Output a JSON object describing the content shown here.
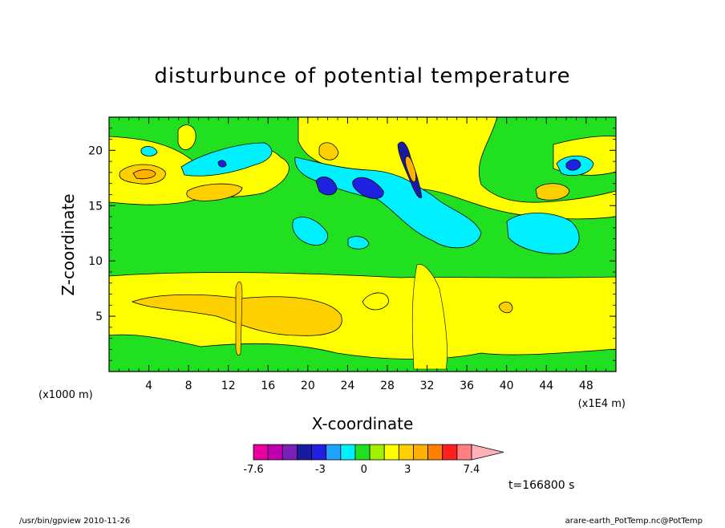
{
  "chart_data": {
    "type": "contour",
    "title": "disturbunce of potential temperature",
    "xlabel": "X-coordinate",
    "ylabel": "Z-coordinate",
    "x_unit": "(x1E4 m)",
    "y_unit": "(x1000 m)",
    "xlim": [
      0,
      51
    ],
    "ylim": [
      0,
      23
    ],
    "x_ticks": [
      4,
      8,
      12,
      16,
      20,
      24,
      28,
      32,
      36,
      40,
      44,
      48
    ],
    "y_ticks": [
      5,
      10,
      15,
      20
    ],
    "time_label": "t=166800 s",
    "colorbar": {
      "colors": [
        "#e600a0",
        "#c000b0",
        "#7a1fb8",
        "#1a1aa0",
        "#2020e0",
        "#20a0ff",
        "#00f0ff",
        "#20e020",
        "#a0f000",
        "#ffff00",
        "#ffd000",
        "#ffb000",
        "#ff8000",
        "#ff2020",
        "#ff8080",
        "#ffb0b8"
      ],
      "tick_labels": [
        "-7.6",
        "-3",
        "0",
        "3",
        "7.4"
      ],
      "range": [
        -7.6,
        7.4
      ]
    },
    "field_regions": [
      {
        "name": "upper-yellow-band",
        "level": "positive",
        "color": "#ffff00"
      },
      {
        "name": "lower-yellow-band",
        "level": "positive",
        "color": "#ffff00"
      },
      {
        "name": "lower-orange-blob",
        "level": "high-positive",
        "color": "#ffd000"
      },
      {
        "name": "upper-cyan-patches",
        "level": "negative",
        "color": "#00f0ff"
      },
      {
        "name": "upper-blue-patches",
        "level": "low-negative",
        "color": "#2020e0"
      },
      {
        "name": "background-green",
        "level": "near-zero",
        "color": "#20e020"
      }
    ]
  },
  "footer": {
    "left": "/usr/bin/gpview   2010-11-26",
    "right": "arare-earth_PotTemp.nc@PotTemp"
  }
}
